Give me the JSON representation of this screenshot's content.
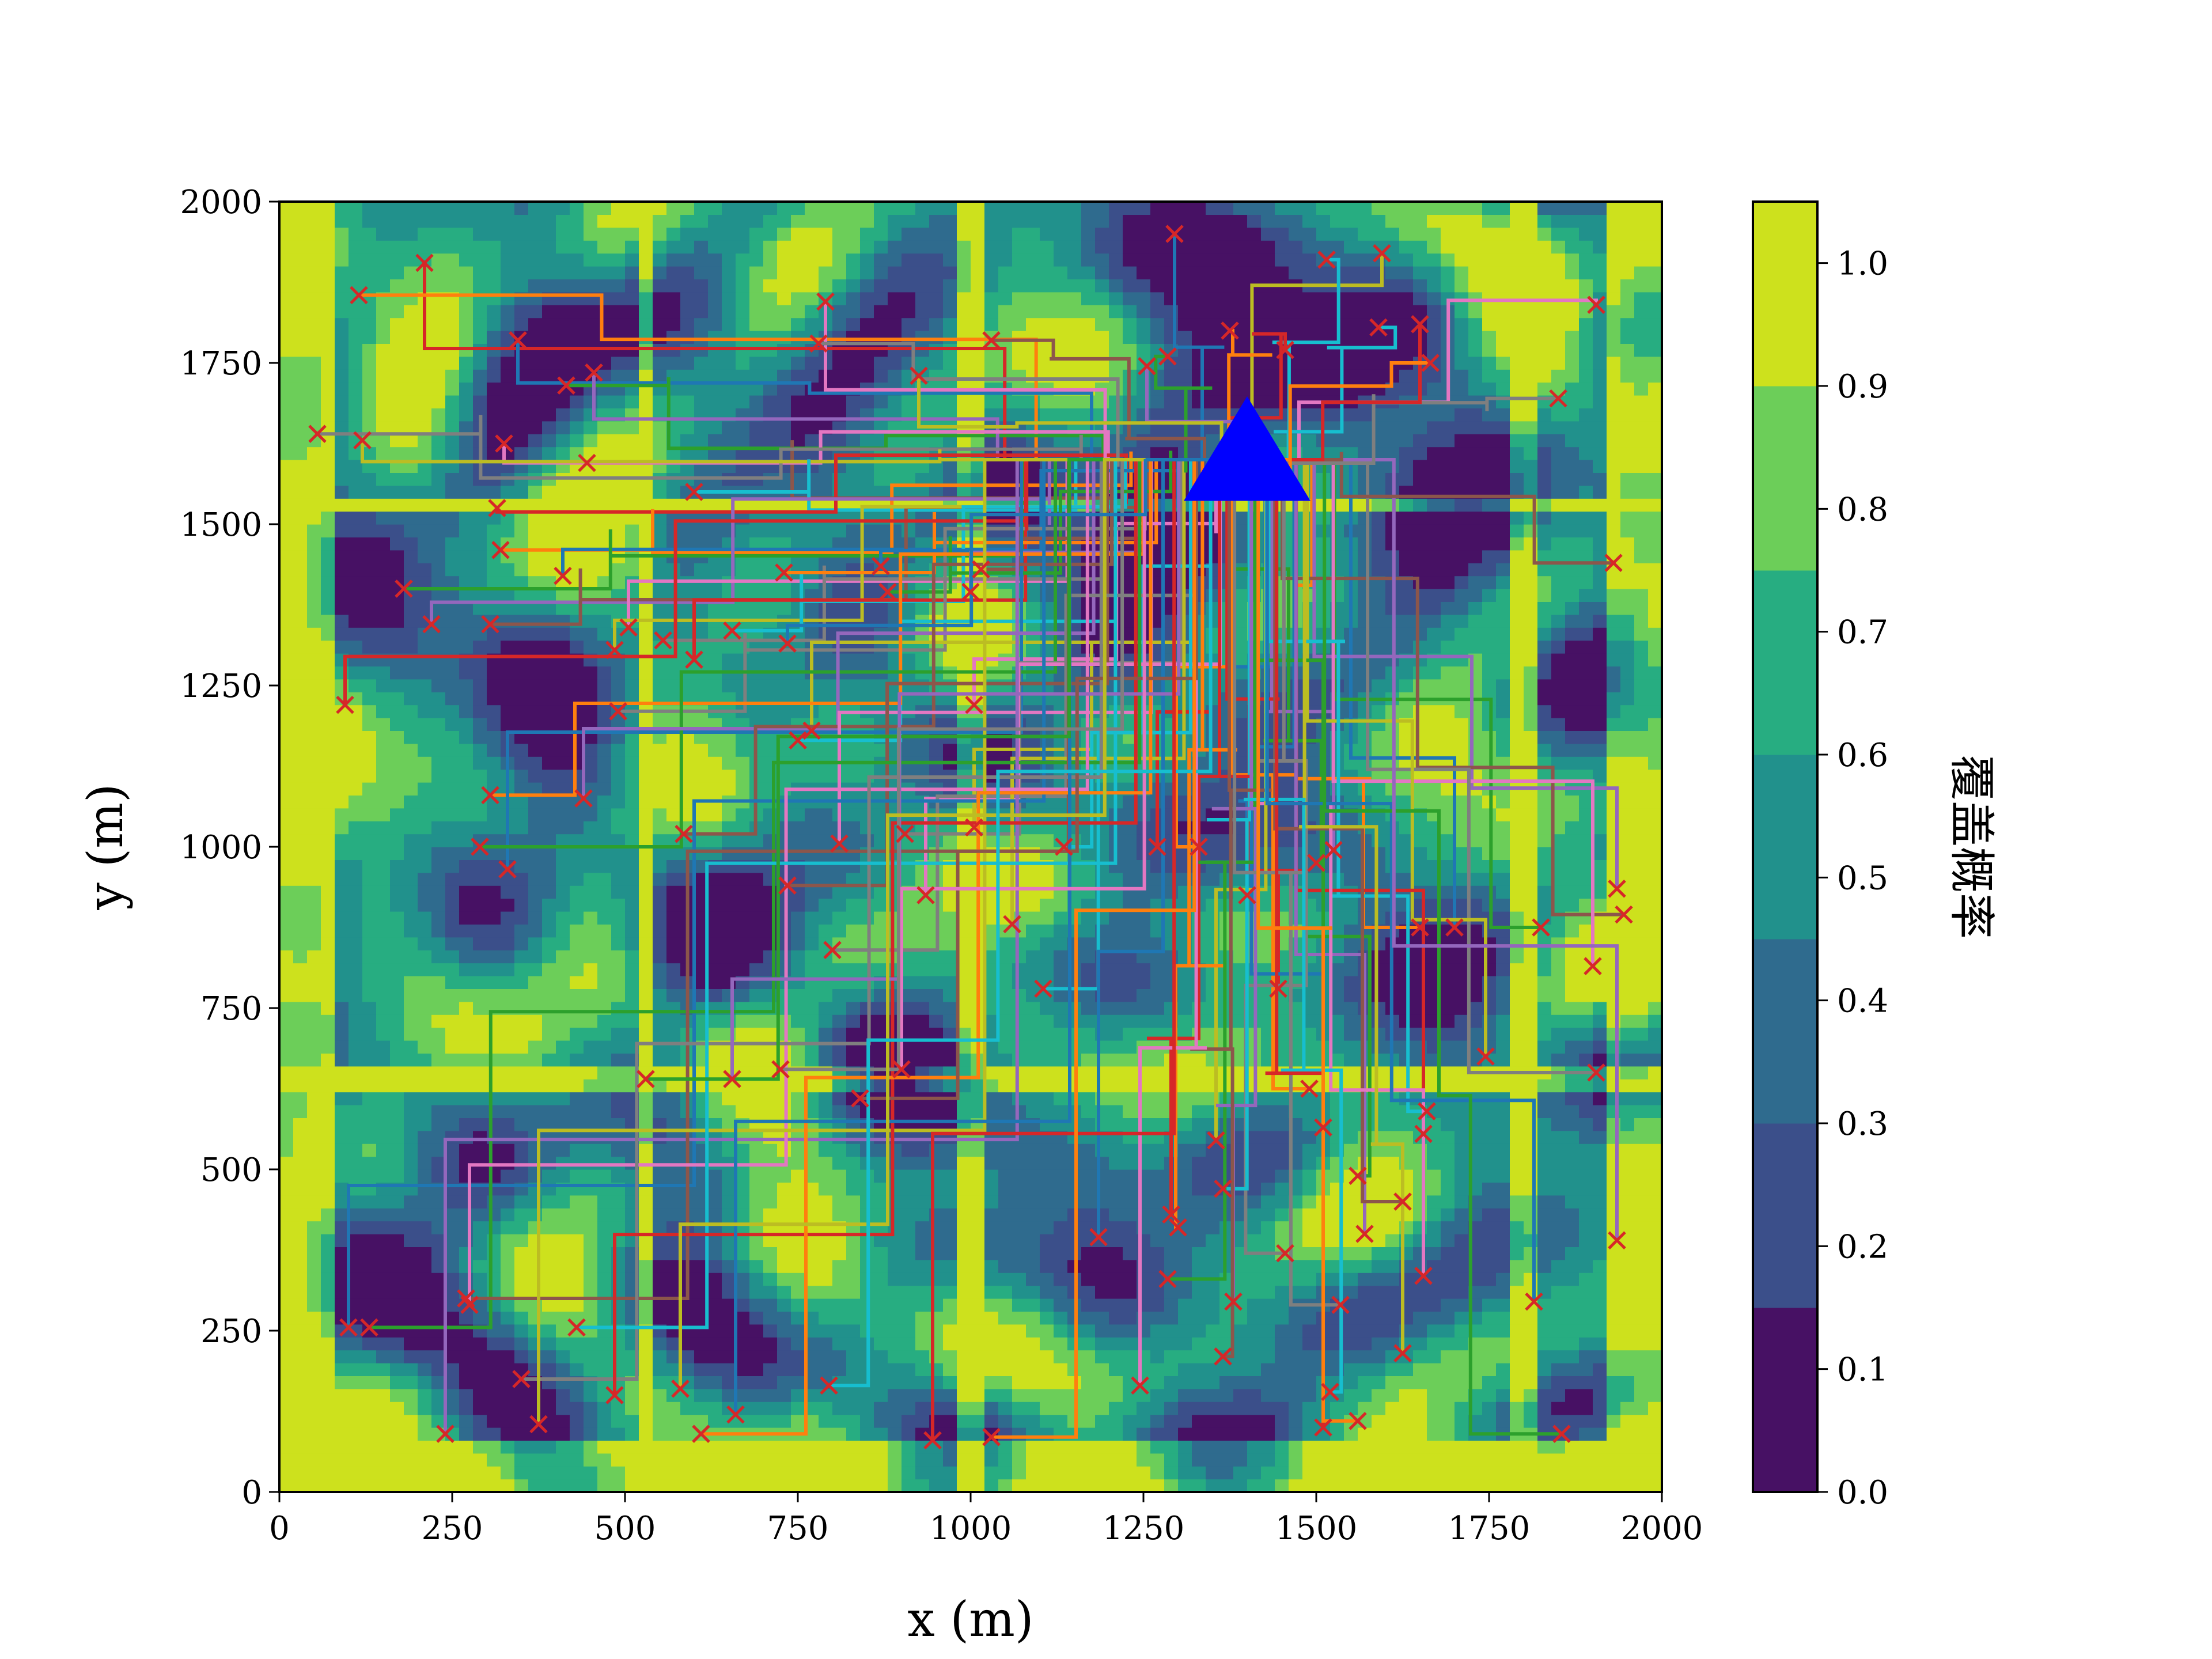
{
  "chart_data": {
    "type": "heatmap",
    "xlabel": "x (m)",
    "ylabel": "y (m)",
    "xlim": [
      0,
      2000
    ],
    "ylim": [
      0,
      2000
    ],
    "x_ticks": [
      "0",
      "250",
      "500",
      "750",
      "1000",
      "1250",
      "1500",
      "1750",
      "2000"
    ],
    "y_ticks": [
      "0",
      "250",
      "500",
      "750",
      "1000",
      "1250",
      "1500",
      "1750",
      "2000"
    ],
    "colorbar": {
      "label": "覆盖概率",
      "range": [
        0.0,
        1.05
      ],
      "ticks": [
        "0.0",
        "0.1",
        "0.2",
        "0.3",
        "0.4",
        "0.5",
        "0.6",
        "0.7",
        "0.8",
        "0.9",
        "1.0"
      ],
      "levels": [
        0.0,
        0.15,
        0.3,
        0.45,
        0.6,
        0.75,
        0.9,
        1.05
      ],
      "colors": [
        "#471164",
        "#3b4f8a",
        "#2f6b8e",
        "#21918c",
        "#27ad81",
        "#6cce59",
        "#cde11d"
      ]
    },
    "base_station": {
      "x": 1400,
      "y": 1600,
      "marker": "triangle",
      "color": "#0000ff"
    },
    "path_colors": [
      "#d62728",
      "#ff7f0e",
      "#1f77b4",
      "#2ca02c",
      "#9467bd",
      "#8c564b",
      "#e377c2",
      "#7f7f7f",
      "#bcbd22",
      "#17becf"
    ],
    "endpoint_marker": {
      "symbol": "x",
      "color": "#d62728"
    },
    "trajectory_endpoints": [
      [
        210,
        1905
      ],
      [
        115,
        1855
      ],
      [
        345,
        1785
      ],
      [
        415,
        1715
      ],
      [
        455,
        1735
      ],
      [
        445,
        1595
      ],
      [
        325,
        1625
      ],
      [
        55,
        1640
      ],
      [
        120,
        1630
      ],
      [
        600,
        1550
      ],
      [
        315,
        1525
      ],
      [
        320,
        1460
      ],
      [
        410,
        1420
      ],
      [
        180,
        1400
      ],
      [
        220,
        1345
      ],
      [
        305,
        1345
      ],
      [
        505,
        1340
      ],
      [
        555,
        1320
      ],
      [
        485,
        1305
      ],
      [
        655,
        1335
      ],
      [
        600,
        1290
      ],
      [
        730,
        1425
      ],
      [
        870,
        1435
      ],
      [
        880,
        1395
      ],
      [
        1000,
        1395
      ],
      [
        1015,
        1430
      ],
      [
        1005,
        1220
      ],
      [
        490,
        1210
      ],
      [
        770,
        1180
      ],
      [
        750,
        1165
      ],
      [
        95,
        1220
      ],
      [
        305,
        1080
      ],
      [
        330,
        965
      ],
      [
        290,
        1000
      ],
      [
        440,
        1075
      ],
      [
        585,
        1020
      ],
      [
        810,
        1005
      ],
      [
        905,
        1020
      ],
      [
        1005,
        1030
      ],
      [
        1135,
        1000
      ],
      [
        1270,
        1000
      ],
      [
        1330,
        1000
      ],
      [
        1400,
        925
      ],
      [
        1500,
        975
      ],
      [
        1525,
        995
      ],
      [
        735,
        940
      ],
      [
        935,
        925
      ],
      [
        800,
        840
      ],
      [
        1060,
        880
      ],
      [
        1105,
        780
      ],
      [
        1445,
        780
      ],
      [
        1650,
        875
      ],
      [
        1700,
        875
      ],
      [
        1825,
        875
      ],
      [
        1935,
        935
      ],
      [
        1945,
        895
      ],
      [
        1900,
        815
      ],
      [
        1905,
        650
      ],
      [
        1745,
        675
      ],
      [
        1660,
        590
      ],
      [
        1655,
        555
      ],
      [
        1490,
        625
      ],
      [
        1510,
        565
      ],
      [
        1560,
        490
      ],
      [
        1570,
        400
      ],
      [
        1625,
        450
      ],
      [
        1655,
        335
      ],
      [
        1455,
        370
      ],
      [
        1355,
        545
      ],
      [
        1365,
        470
      ],
      [
        1290,
        430
      ],
      [
        1300,
        410
      ],
      [
        1185,
        395
      ],
      [
        1285,
        330
      ],
      [
        1380,
        295
      ],
      [
        1365,
        210
      ],
      [
        1245,
        165
      ],
      [
        1535,
        290
      ],
      [
        1625,
        215
      ],
      [
        1520,
        155
      ],
      [
        1510,
        100
      ],
      [
        1560,
        110
      ],
      [
        1815,
        295
      ],
      [
        1855,
        90
      ],
      [
        1935,
        390
      ],
      [
        1930,
        1440
      ],
      [
        1905,
        1840
      ],
      [
        1850,
        1695
      ],
      [
        1595,
        1920
      ],
      [
        1515,
        1910
      ],
      [
        1455,
        1770
      ],
      [
        1375,
        1800
      ],
      [
        1295,
        1950
      ],
      [
        1285,
        1760
      ],
      [
        1255,
        1745
      ],
      [
        1030,
        1785
      ],
      [
        790,
        1845
      ],
      [
        780,
        1780
      ],
      [
        925,
        1730
      ],
      [
        1590,
        1805
      ],
      [
        1650,
        1810
      ],
      [
        1665,
        1750
      ],
      [
        100,
        255
      ],
      [
        130,
        255
      ],
      [
        240,
        90
      ],
      [
        270,
        300
      ],
      [
        275,
        290
      ],
      [
        350,
        175
      ],
      [
        375,
        105
      ],
      [
        430,
        255
      ],
      [
        485,
        150
      ],
      [
        610,
        90
      ],
      [
        660,
        120
      ],
      [
        530,
        640
      ],
      [
        655,
        640
      ],
      [
        840,
        610
      ],
      [
        900,
        655
      ],
      [
        725,
        655
      ],
      [
        580,
        160
      ],
      [
        795,
        165
      ],
      [
        945,
        80
      ],
      [
        1030,
        85
      ],
      [
        735,
        1315
      ]
    ]
  }
}
